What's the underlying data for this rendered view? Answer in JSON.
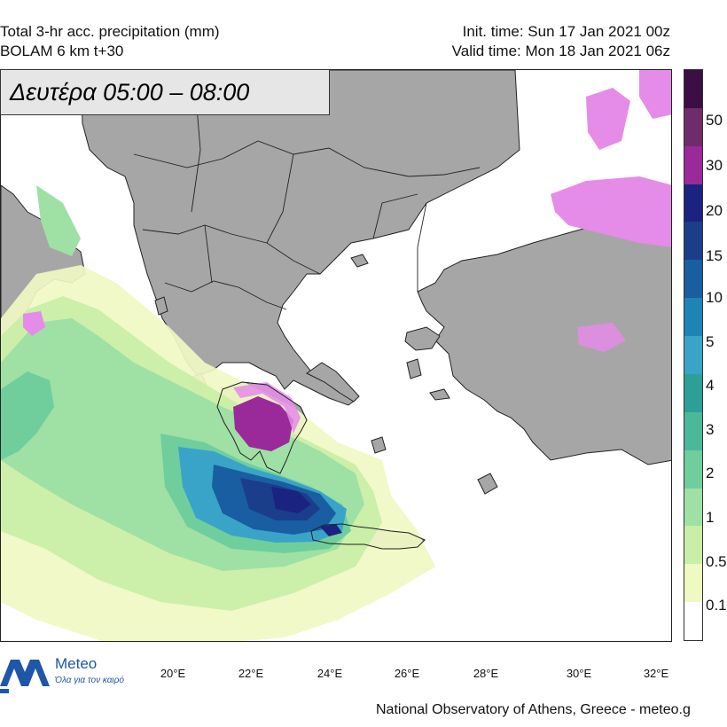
{
  "header": {
    "title_line1": "Total 3-hr acc. precipitation (mm)",
    "title_line2": "BOLAM 6 km t+30",
    "init_time": "Init. time: Sun 17 Jan 2021 00z",
    "valid_time": "Valid time: Mon 18 Jan 2021 06z"
  },
  "period_label": "Δευτέρα 05:00 – 08:00",
  "colorbar": {
    "labels": [
      "50",
      "30",
      "20",
      "15",
      "10",
      "5",
      "4",
      "3",
      "2",
      "1",
      "0.5",
      "0.1"
    ],
    "colors": [
      "#3c0f44",
      "#6e2c6a",
      "#9a2a9a",
      "#1a2380",
      "#1a3e8a",
      "#185ea0",
      "#1e84b8",
      "#3aa3c8",
      "#2e9f96",
      "#4bb89a",
      "#6fce9c",
      "#9fe0a5",
      "#c9eea8",
      "#eff9c2",
      "#ffffff"
    ]
  },
  "x_axis": {
    "labels": [
      "20°E",
      "22°E",
      "24°E",
      "26°E",
      "28°E",
      "30°E",
      "32°E"
    ]
  },
  "logo": {
    "brand": "Meteo",
    "slogan": "Όλα για τον καιρό",
    "color": "#1f56a8"
  },
  "credit": "National Observatory of Athens, Greece - meteo.g"
}
